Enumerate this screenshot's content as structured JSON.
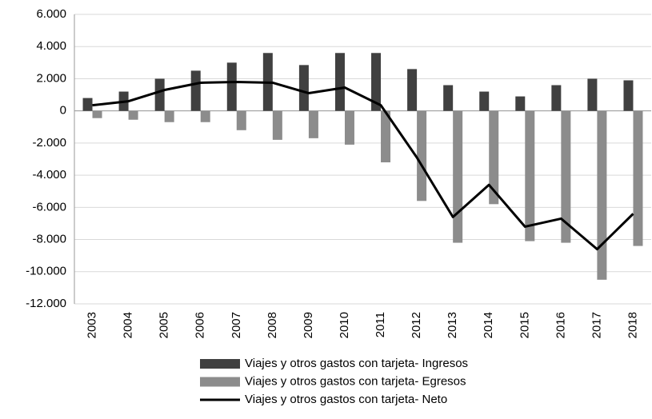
{
  "chart_data": {
    "type": "bar",
    "categories": [
      "2003",
      "2004",
      "2005",
      "2006",
      "2007",
      "2008",
      "2009",
      "2010",
      "2011",
      "2012",
      "2013",
      "2014",
      "2015",
      "2016",
      "2017",
      "2018"
    ],
    "series": [
      {
        "name": "Viajes y otros gastos con tarjeta- Ingresos",
        "type": "bar",
        "color": "#404040",
        "values": [
          800,
          1200,
          2000,
          2500,
          3000,
          3600,
          2850,
          3600,
          3600,
          2600,
          1600,
          1200,
          900,
          1600,
          2000,
          1900
        ]
      },
      {
        "name": "Viajes y otros gastos con tarjeta- Egresos",
        "type": "bar",
        "color": "#8c8c8c",
        "values": [
          -450,
          -550,
          -700,
          -700,
          -1200,
          -1800,
          -1700,
          -2100,
          -3200,
          -5600,
          -8200,
          -5800,
          -8100,
          -8200,
          -10500,
          -8400
        ]
      },
      {
        "name": "Viajes y otros gastos con tarjeta- Neto",
        "type": "line",
        "color": "#000000",
        "values": [
          350,
          600,
          1300,
          1750,
          1800,
          1750,
          1100,
          1450,
          350,
          -2900,
          -6600,
          -4600,
          -7200,
          -6700,
          -8600,
          -6400
        ]
      }
    ],
    "ylim": [
      -12000,
      6000
    ],
    "yticks": [
      {
        "value": -12000,
        "label": "-12.000"
      },
      {
        "value": -10000,
        "label": "-10.000"
      },
      {
        "value": -8000,
        "label": "-8.000"
      },
      {
        "value": -6000,
        "label": "-6.000"
      },
      {
        "value": -4000,
        "label": "-4.000"
      },
      {
        "value": -2000,
        "label": "-2.000"
      },
      0,
      {
        "value": 2000,
        "label": "2.000"
      },
      {
        "value": 4000,
        "label": "4.000"
      },
      {
        "value": 6000,
        "label": "6.000"
      }
    ],
    "grid": true,
    "legend": "bottom"
  }
}
